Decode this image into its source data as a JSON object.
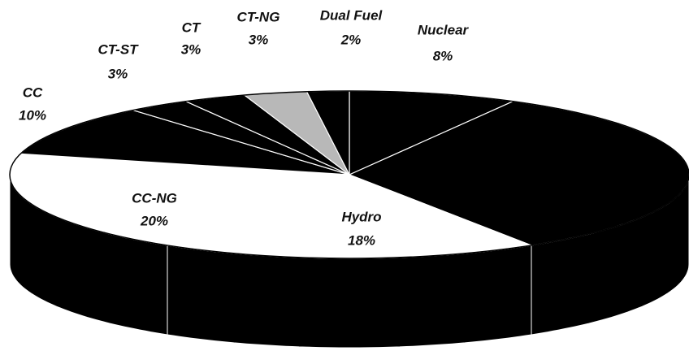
{
  "chart_data": {
    "type": "pie",
    "categories": [
      "Nuclear",
      null,
      "Hydro",
      "CC-NG",
      "CC",
      "CT-ST",
      "CT",
      "CT-NG",
      "Dual Fuel"
    ],
    "values": [
      8,
      33,
      18,
      20,
      10,
      3,
      3,
      3,
      2
    ],
    "value_labels": [
      "8%",
      null,
      "18%",
      "20%",
      "10%",
      "3%",
      "3%",
      "3%",
      "2%"
    ],
    "colors": [
      "#000000",
      "#000000",
      "#ffffff",
      "#ffffff",
      "#000000",
      "#000000",
      "#000000",
      "#b8b8b8",
      "#000000"
    ]
  }
}
